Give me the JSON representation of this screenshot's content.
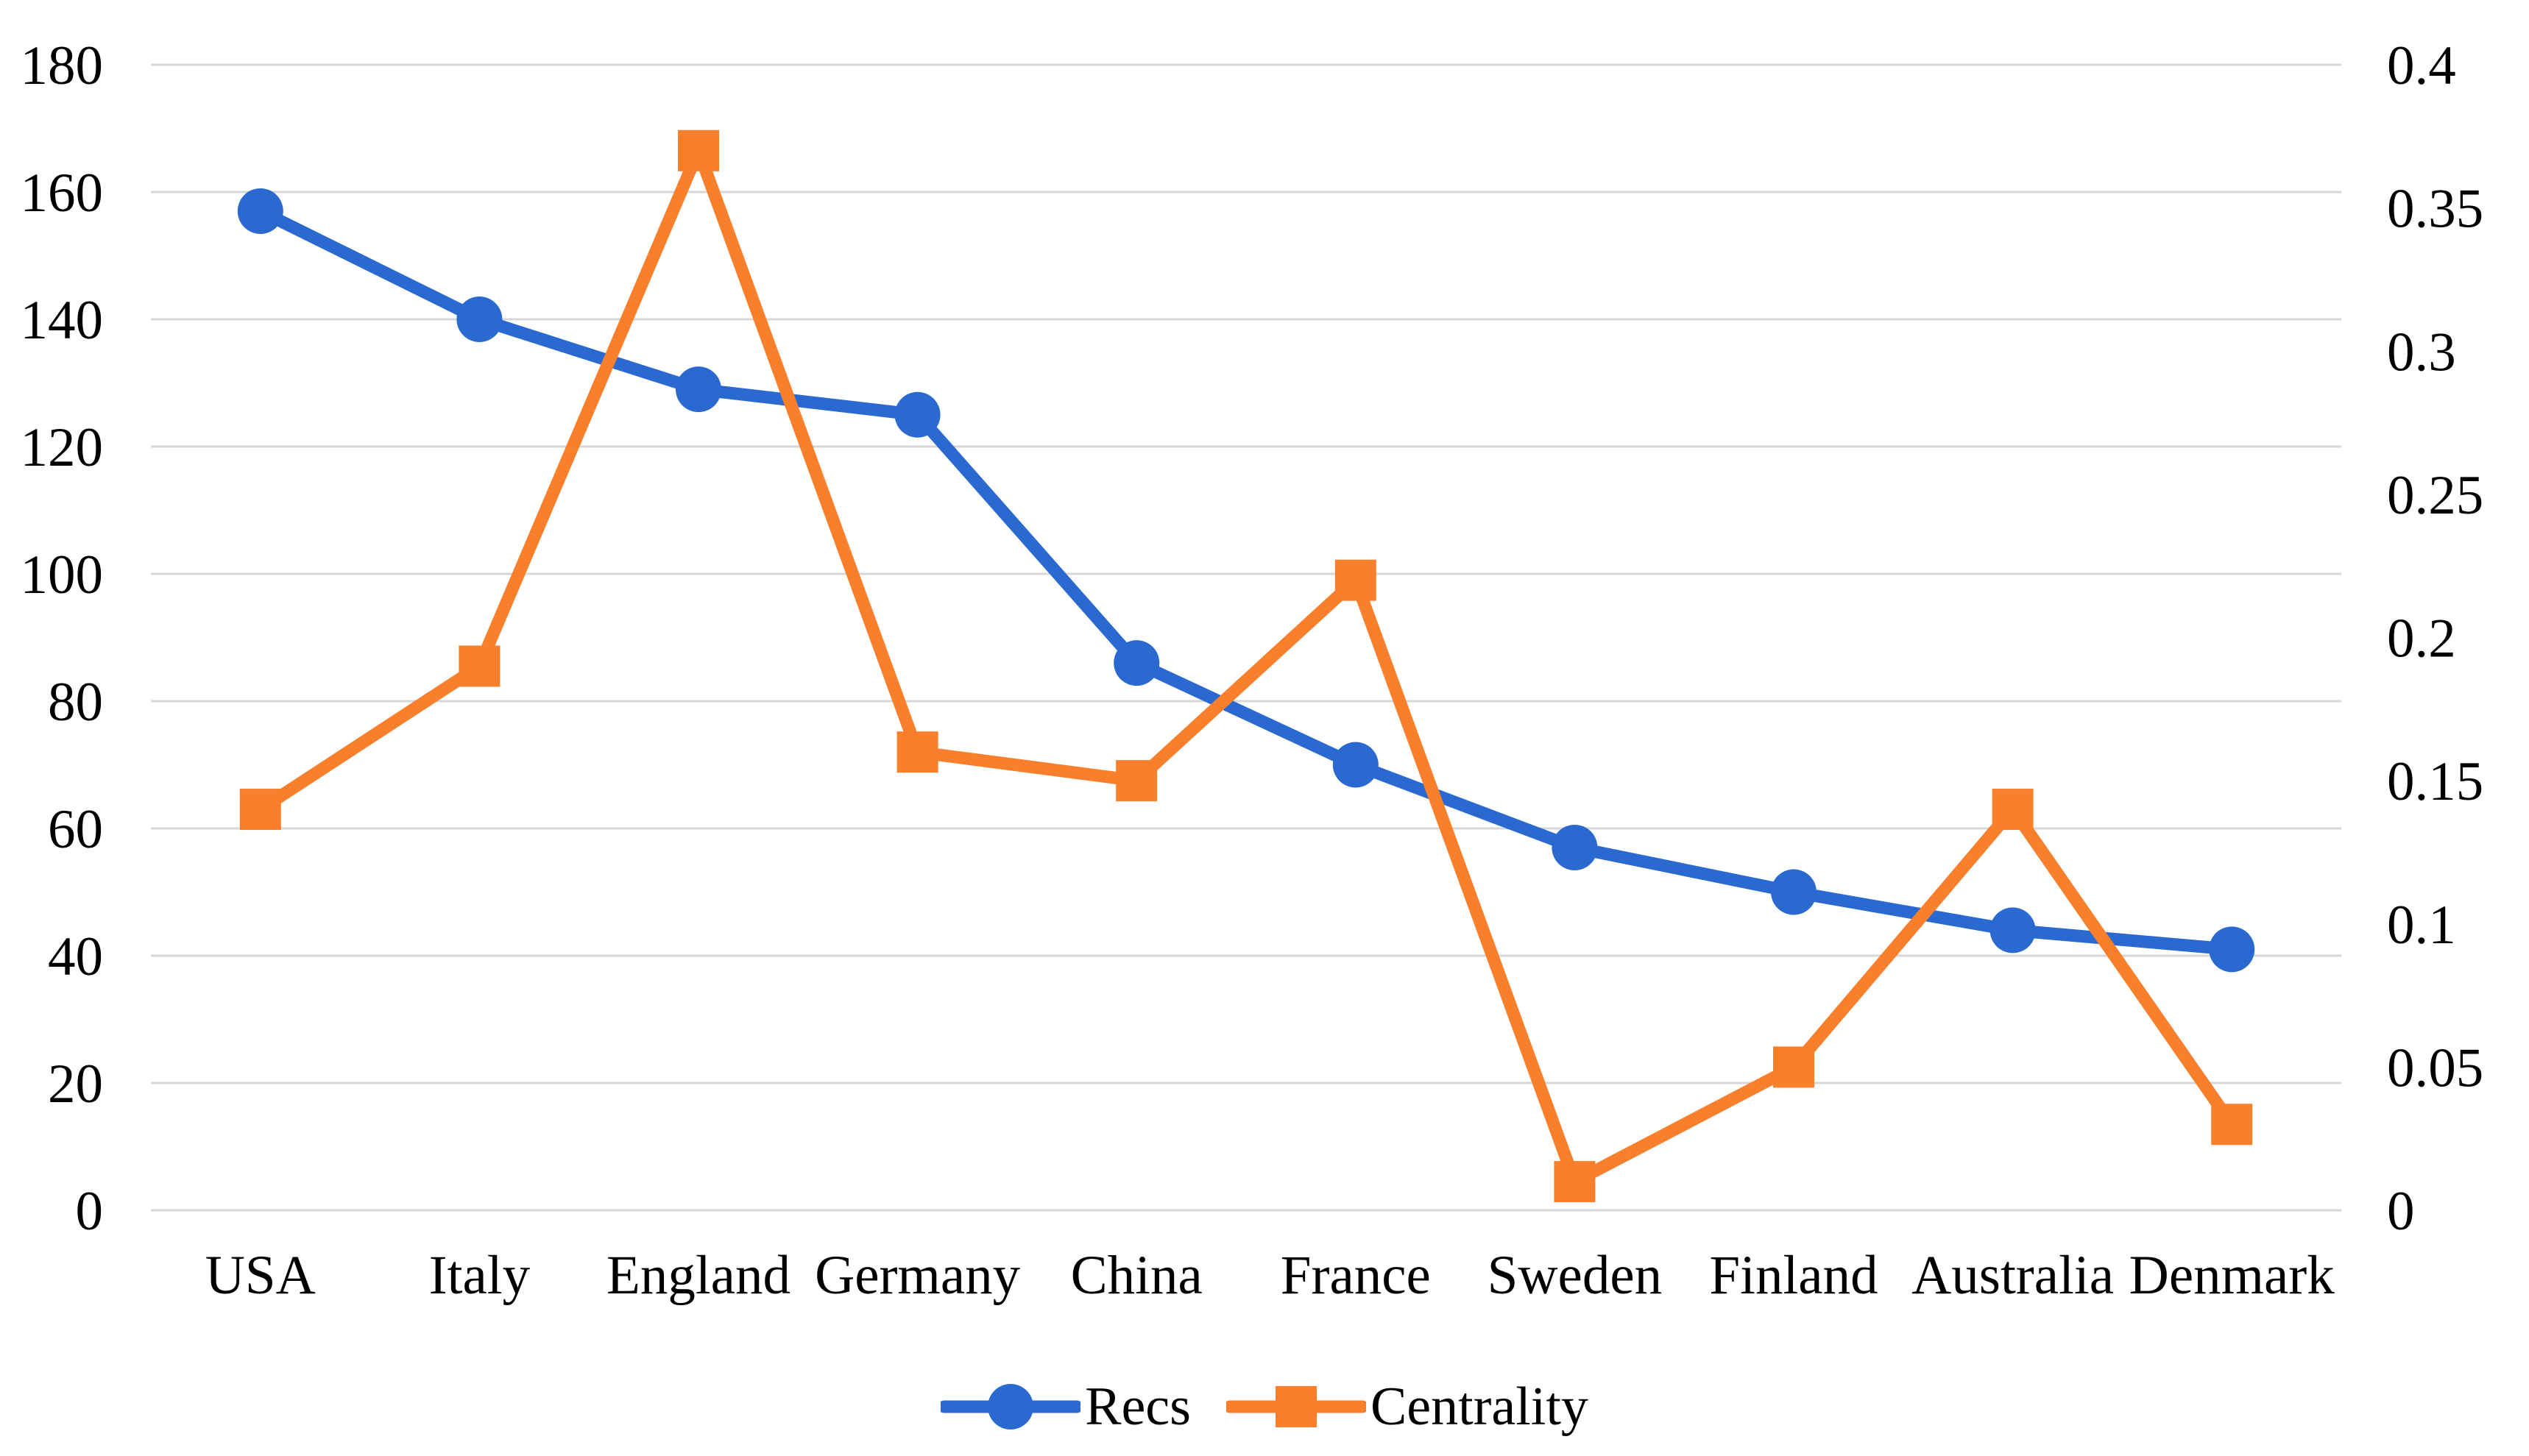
{
  "chart_data": {
    "type": "line",
    "title": "",
    "categories": [
      "USA",
      "Italy",
      "England",
      "Germany",
      "China",
      "France",
      "Sweden",
      "Finland",
      "Australia",
      "Denmark"
    ],
    "series": [
      {
        "name": "Recs",
        "axis": "left",
        "color": "#2A6AD0",
        "marker": "circle",
        "values": [
          157,
          140,
          129,
          125,
          86,
          70,
          57,
          50,
          44,
          41
        ]
      },
      {
        "name": "Centrality",
        "axis": "right",
        "color": "#F87F2C",
        "marker": "square",
        "values": [
          0.14,
          0.19,
          0.37,
          0.16,
          0.15,
          0.22,
          0.01,
          0.05,
          0.14,
          0.03
        ]
      }
    ],
    "left_axis": {
      "min": 0,
      "max": 180,
      "step": 20,
      "tick_labels": [
        "180",
        "160",
        "140",
        "120",
        "100",
        "80",
        "60",
        "40",
        "20",
        "0"
      ]
    },
    "right_axis": {
      "min": 0,
      "max": 0.4,
      "step": 0.05,
      "tick_labels": [
        "0.4",
        "0.35",
        "0.3",
        "0.25",
        "0.2",
        "0.15",
        "0.1",
        "0.05",
        "0"
      ]
    },
    "legend": {
      "position": "bottom",
      "entries": [
        "Recs",
        "Centrality"
      ]
    },
    "grid": {
      "show": true,
      "color": "#D7D7D7"
    },
    "background": "#FFFFFF",
    "text_color": "#000000"
  }
}
